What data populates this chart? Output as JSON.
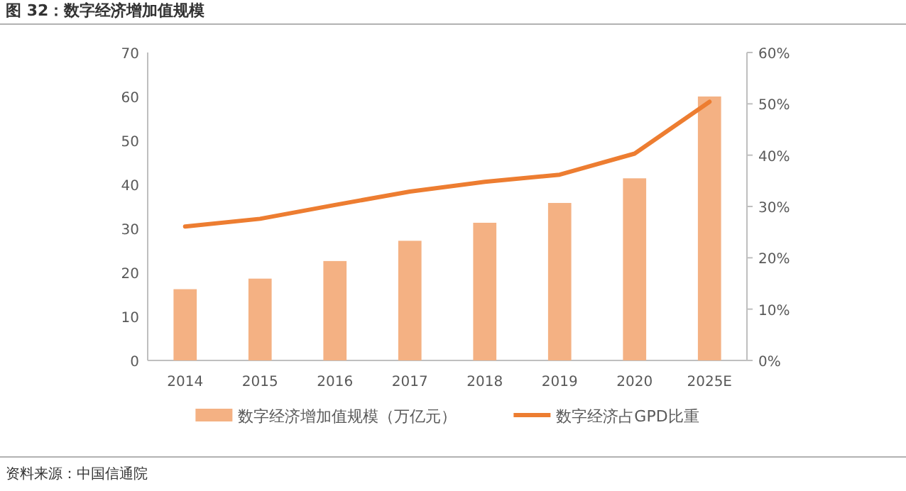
{
  "chart_data": {
    "type": "bar",
    "title": "图 32：数字经济增加值规模",
    "categories": [
      "2014",
      "2015",
      "2016",
      "2017",
      "2018",
      "2019",
      "2020",
      "2025E"
    ],
    "series": [
      {
        "name": "数字经济增加值规模（万亿元）",
        "color": "#f4b183",
        "values": [
          16.2,
          18.6,
          22.6,
          27.2,
          31.3,
          35.8,
          41.4,
          60
        ]
      },
      {
        "name": "数字经济占GPD比重",
        "type": "line",
        "axis": "y2",
        "color": "#ed7d31",
        "values": [
          26.1,
          27.6,
          30.3,
          32.9,
          34.8,
          36.2,
          40.3,
          50.4
        ]
      }
    ],
    "ylim": [
      0,
      70
    ],
    "yticks": [
      0,
      10,
      20,
      30,
      40,
      50,
      60,
      70
    ],
    "y2lim": [
      0,
      60
    ],
    "y2ticks": [
      {
        "value": 0,
        "label": "0%"
      },
      {
        "value": 10,
        "label": "10%"
      },
      {
        "value": 20,
        "label": "20%"
      },
      {
        "value": 30,
        "label": "30%"
      },
      {
        "value": 40,
        "label": "40%"
      },
      {
        "value": 50,
        "label": "50%"
      },
      {
        "value": 60,
        "label": "60%"
      }
    ],
    "legend": "bottom",
    "grid": false,
    "marker": "none",
    "annotations": [
      "资料来源：中国信通院"
    ]
  }
}
